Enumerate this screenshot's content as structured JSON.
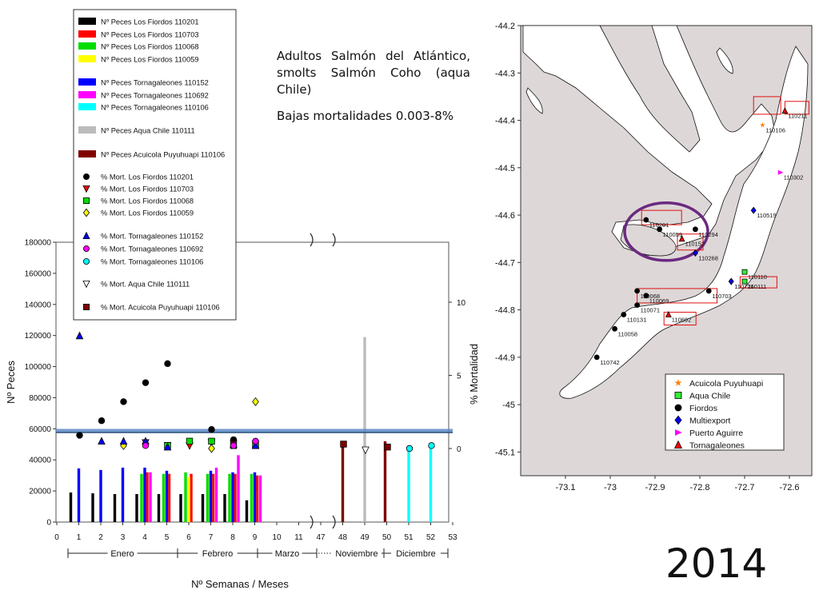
{
  "description": {
    "line1": "Adultos Salmón del Atlántico, smolts Salmón Coho (aqua Chile)",
    "line2": "Bajas mortalidades 0.003-8%"
  },
  "year_label": "2014",
  "chart_data": [
    {
      "type": "bar",
      "xlabel": "Nº Semanas / Meses",
      "ylabel": "Nº Peces",
      "y2label": "% Mortalidad",
      "ylim": [
        0,
        180000
      ],
      "y2lim": [
        0,
        10
      ],
      "y_ticks": [
        "0",
        "20000",
        "40000",
        "60000",
        "80000",
        "100000",
        "120000",
        "140000",
        "160000",
        "180000"
      ],
      "y2_ticks": [
        "0",
        "5",
        "10"
      ],
      "x_ticks": [
        "0",
        "1",
        "2",
        "3",
        "4",
        "5",
        "6",
        "7",
        "8",
        "9",
        "10",
        "11",
        "47",
        "48",
        "49",
        "50",
        "51",
        "52",
        "53"
      ],
      "months": [
        "Enero",
        "Febrero",
        "Marzo",
        "Noviembre",
        "Diciembre"
      ],
      "reference_line_value": 55000,
      "legend_position": "top-left",
      "series": [
        {
          "name": "Nº Peces Los Fiordos 110201",
          "color": "#000000",
          "kind": "bar",
          "points": [
            [
              1,
              19000
            ],
            [
              2,
              18500
            ],
            [
              3,
              18000
            ],
            [
              4,
              18000
            ],
            [
              5,
              18000
            ],
            [
              6,
              18000
            ],
            [
              7,
              18000
            ],
            [
              8,
              18000
            ],
            [
              9,
              14000
            ]
          ]
        },
        {
          "name": "Nº Peces Los Fiordos 110703",
          "color": "#ff0000",
          "kind": "bar",
          "points": [
            [
              4,
              32000
            ],
            [
              5,
              31000
            ],
            [
              6,
              31000
            ],
            [
              7,
              31000
            ],
            [
              8,
              31000
            ],
            [
              9,
              30000
            ]
          ]
        },
        {
          "name": "Nº Peces Los Fiordos 110068",
          "color": "#00dd00",
          "kind": "bar",
          "points": [
            [
              4,
              31000
            ],
            [
              5,
              31000
            ],
            [
              6,
              32000
            ],
            [
              7,
              31000
            ],
            [
              8,
              31000
            ],
            [
              9,
              31000
            ]
          ]
        },
        {
          "name": "Nº Peces Los Fiordos 110059",
          "color": "#ffff00",
          "kind": "bar",
          "points": [
            [
              3,
              30000
            ],
            [
              4,
              30000
            ],
            [
              5,
              31000
            ],
            [
              6,
              29000
            ],
            [
              7,
              29000
            ],
            [
              8,
              28000
            ],
            [
              9,
              20000
            ]
          ]
        },
        {
          "name": "Nº Peces Tornagaleones 110152",
          "color": "#0000ff",
          "kind": "bar",
          "points": [
            [
              1,
              34500
            ],
            [
              2,
              33500
            ],
            [
              3,
              35000
            ],
            [
              4,
              35000
            ],
            [
              5,
              33000
            ],
            [
              7,
              33000
            ],
            [
              8,
              32000
            ],
            [
              9,
              32000
            ]
          ]
        },
        {
          "name": "Nº Peces Tornagaleones 110692",
          "color": "#ff00ff",
          "kind": "bar",
          "points": [
            [
              4,
              32000
            ],
            [
              7,
              35000
            ],
            [
              8,
              43000
            ],
            [
              9,
              30000
            ]
          ]
        },
        {
          "name": "Nº Peces Tornagaleones 110106",
          "color": "#00ffff",
          "kind": "bar",
          "points": [
            [
              51,
              48000
            ],
            [
              52,
              48000
            ]
          ]
        },
        {
          "name": "Nº Peces Aqua Chile 110111",
          "color": "#bbbbbb",
          "kind": "bar",
          "points": [
            [
              49,
              119000
            ]
          ]
        },
        {
          "name": "Nº Peces Acuicola Puyuhuapi 110106",
          "color": "#800000",
          "kind": "bar",
          "points": [
            [
              48,
              50000
            ],
            [
              50,
              52000
            ]
          ]
        },
        {
          "name": "% Mort. Los Fiordos 110201",
          "color": "#000000",
          "kind": "marker",
          "marker": "circle",
          "points": [
            [
              1,
              0.9
            ],
            [
              2,
              1.9
            ],
            [
              3,
              3.2
            ],
            [
              4,
              4.5
            ],
            [
              5,
              5.8
            ],
            [
              7,
              1.3
            ],
            [
              8,
              0.6
            ]
          ]
        },
        {
          "name": "% Mort. Los Fiordos 110703",
          "color": "#ff0000",
          "kind": "marker",
          "marker": "triangle-down",
          "points": [
            [
              4,
              0.4
            ],
            [
              5,
              0.2
            ],
            [
              6,
              0.2
            ],
            [
              7,
              0.4
            ],
            [
              8,
              0.3
            ],
            [
              9,
              0.3
            ]
          ]
        },
        {
          "name": "% Mort. Los Fiordos 110068",
          "color": "#00dd00",
          "kind": "marker",
          "marker": "square",
          "points": [
            [
              5,
              0.2
            ],
            [
              6,
              0.5
            ],
            [
              7,
              0.5
            ],
            [
              8,
              0.2
            ],
            [
              9,
              0.2
            ]
          ]
        },
        {
          "name": "% Mort. Los Fiordos 110059",
          "color": "#ffff00",
          "kind": "marker",
          "marker": "diamond",
          "points": [
            [
              3,
              0.2
            ],
            [
              4,
              0.3
            ],
            [
              7,
              0.0
            ],
            [
              9,
              3.2
            ]
          ]
        },
        {
          "name": "% Mort. Tornagaleones 110152",
          "color": "#0000ff",
          "kind": "marker",
          "marker": "triangle-up",
          "points": [
            [
              1,
              7.7
            ],
            [
              2,
              0.5
            ],
            [
              3,
              0.5
            ],
            [
              4,
              0.5
            ],
            [
              5,
              0.1
            ],
            [
              8,
              0.3
            ],
            [
              9,
              0.2
            ]
          ]
        },
        {
          "name": "% Mort. Tornagaleones 110692",
          "color": "#ff00ff",
          "kind": "marker",
          "marker": "circle",
          "points": [
            [
              4,
              0.2
            ],
            [
              8,
              0.2
            ],
            [
              9,
              0.5
            ]
          ]
        },
        {
          "name": "% Mort. Tornagaleones 110106",
          "color": "#00ffff",
          "kind": "marker",
          "marker": "circle",
          "points": [
            [
              51,
              0.0
            ],
            [
              52,
              0.2
            ]
          ]
        },
        {
          "name": "% Mort. Aqua Chile 110111",
          "color": "#ffffff",
          "kind": "marker",
          "marker": "triangle-down",
          "points": [
            [
              49,
              -0.1
            ]
          ]
        },
        {
          "name": "% Mort. Acuicola Puyuhuapi 110106",
          "color": "#800000",
          "kind": "marker",
          "marker": "square",
          "points": [
            [
              48,
              0.3
            ],
            [
              50,
              0.1
            ]
          ]
        }
      ]
    },
    {
      "type": "scatter",
      "xlim": [
        -73.2,
        -72.55
      ],
      "ylim": [
        -45.15,
        -44.2
      ],
      "x_ticks": [
        "-73.1",
        "-73",
        "-72.9",
        "-72.8",
        "-72.7",
        "-72.6"
      ],
      "y_ticks": [
        "-44.2",
        "-44.3",
        "-44.4",
        "-44.5",
        "-44.6",
        "-44.7",
        "-44.8",
        "-44.9",
        "-45",
        "-45.1"
      ],
      "legend_position": "bottom-right",
      "legend": [
        {
          "name": "Acuicola Puyuhuapi",
          "color": "#ff8000",
          "marker": "star"
        },
        {
          "name": "Aqua Chile",
          "color": "#33ee33",
          "marker": "square"
        },
        {
          "name": "Fiordos",
          "color": "#000000",
          "marker": "circle"
        },
        {
          "name": "Multiexport",
          "color": "#0000ff",
          "marker": "diamond"
        },
        {
          "name": "Puerto Aguirre",
          "color": "#ff00ff",
          "marker": "triangle-right"
        },
        {
          "name": "Tornagaleones",
          "color": "#ff0000",
          "marker": "triangle-up"
        }
      ],
      "sites": [
        {
          "label": "110106",
          "group": "Acuicola Puyuhuapi",
          "x": -72.66,
          "y": -44.41
        },
        {
          "label": "110211",
          "group": "Tornagaleones",
          "x": -72.61,
          "y": -44.38
        },
        {
          "label": "110302",
          "group": "Puerto Aguirre",
          "x": -72.62,
          "y": -44.51
        },
        {
          "label": "110519",
          "group": "Multiexport",
          "x": -72.68,
          "y": -44.59
        },
        {
          "label": "110201",
          "group": "Fiordos",
          "x": -72.92,
          "y": -44.61
        },
        {
          "label": "110059",
          "group": "Fiordos",
          "x": -72.89,
          "y": -44.63
        },
        {
          "label": "110294",
          "group": "Fiordos",
          "x": -72.81,
          "y": -44.63
        },
        {
          "label": "110152",
          "group": "Tornagaleones",
          "x": -72.84,
          "y": -44.65
        },
        {
          "label": "110268",
          "group": "Multiexport",
          "x": -72.81,
          "y": -44.68
        },
        {
          "label": "110110",
          "group": "Aqua Chile",
          "x": -72.7,
          "y": -44.72
        },
        {
          "label": "110726",
          "group": "Multiexport",
          "x": -72.73,
          "y": -44.74
        },
        {
          "label": "110111",
          "group": "Aqua Chile",
          "x": -72.7,
          "y": -44.74
        },
        {
          "label": "110068",
          "group": "Fiordos",
          "x": -72.94,
          "y": -44.76
        },
        {
          "label": "110069",
          "group": "Fiordos",
          "x": -72.92,
          "y": -44.77
        },
        {
          "label": "110703",
          "group": "Fiordos",
          "x": -72.78,
          "y": -44.76
        },
        {
          "label": "110071",
          "group": "Fiordos",
          "x": -72.94,
          "y": -44.79
        },
        {
          "label": "110131",
          "group": "Fiordos",
          "x": -72.97,
          "y": -44.81
        },
        {
          "label": "110692",
          "group": "Tornagaleones",
          "x": -72.87,
          "y": -44.81
        },
        {
          "label": "110058",
          "group": "Fiordos",
          "x": -72.99,
          "y": -44.84
        },
        {
          "label": "110742",
          "group": "Fiordos",
          "x": -73.03,
          "y": -44.9
        }
      ]
    }
  ]
}
